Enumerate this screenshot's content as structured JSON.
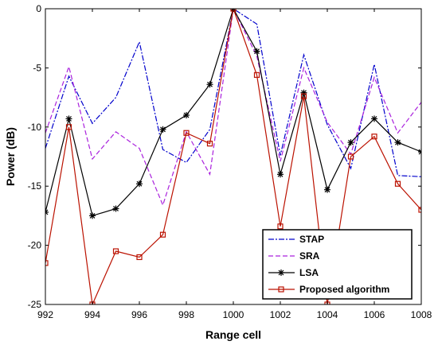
{
  "chart_data": {
    "type": "line",
    "xlabel": "Range cell",
    "ylabel": "Power (dB)",
    "xlim": [
      992,
      1008
    ],
    "ylim": [
      -25,
      0
    ],
    "xticks": [
      992,
      994,
      996,
      998,
      1000,
      1002,
      1004,
      1006,
      1008
    ],
    "yticks": [
      0,
      -5,
      -10,
      -15,
      -20,
      -25
    ],
    "grid": false,
    "legend_position": "bottom-right",
    "x": [
      992,
      993,
      994,
      995,
      996,
      997,
      998,
      999,
      1000,
      1001,
      1002,
      1003,
      1004,
      1005,
      1006,
      1007,
      1008
    ],
    "series": [
      {
        "name": "STAP",
        "color": "#0000cc",
        "style": "dashdot",
        "marker": "none",
        "values": [
          -11.8,
          -5.7,
          -9.7,
          -7.5,
          -2.8,
          -11.9,
          -13.0,
          -10.2,
          0,
          -1.3,
          -12.4,
          -3.9,
          -9.8,
          -13.5,
          -4.7,
          -14.1,
          -14.2
        ]
      },
      {
        "name": "SRA",
        "color": "#aa22dd",
        "style": "dashed",
        "marker": "none",
        "values": [
          -10.5,
          -4.9,
          -12.7,
          -10.4,
          -11.8,
          -16.6,
          -10.4,
          -14.0,
          0,
          -4.0,
          -12.9,
          -5.0,
          -9.6,
          -12.3,
          -5.8,
          -10.5,
          -7.9
        ]
      },
      {
        "name": "LSA",
        "color": "#000000",
        "style": "solid",
        "marker": "asterisk",
        "values": [
          -17.2,
          -9.3,
          -17.5,
          -16.9,
          -14.8,
          -10.2,
          -9.0,
          -6.4,
          0,
          -3.6,
          -14.0,
          -7.1,
          -15.3,
          -11.3,
          -9.3,
          -11.3,
          -12.1
        ]
      },
      {
        "name": "Proposed algorithm",
        "color": "#bb1100",
        "style": "solid",
        "marker": "square",
        "values": [
          -21.5,
          -10.0,
          -25.0,
          -20.5,
          -21.0,
          -19.1,
          -10.5,
          -11.4,
          0,
          -5.6,
          -18.4,
          -7.4,
          -25.0,
          -12.5,
          -10.8,
          -14.8,
          -17.0
        ]
      }
    ]
  }
}
